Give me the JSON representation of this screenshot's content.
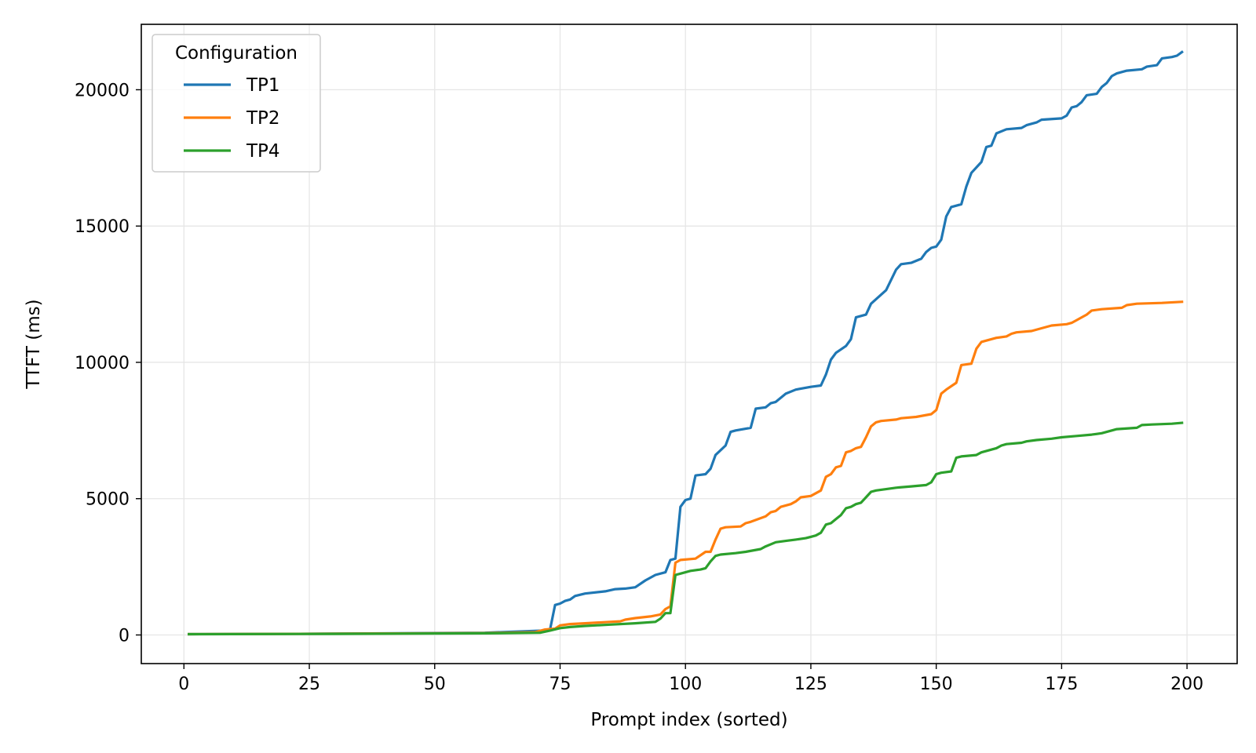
{
  "chart_data": {
    "type": "line",
    "title": "",
    "xlabel": "Prompt index (sorted)",
    "ylabel": "TTFT (ms)",
    "xlim": [
      -8.5,
      210
    ],
    "ylim": [
      -1050,
      22400
    ],
    "xticks": [
      0,
      25,
      50,
      75,
      100,
      125,
      150,
      175,
      200
    ],
    "yticks": [
      0,
      5000,
      10000,
      15000,
      20000
    ],
    "grid": true,
    "legend": {
      "title": "Configuration",
      "position": "top-left"
    },
    "series": [
      {
        "name": "TP1",
        "color": "#1f77b4",
        "points": [
          [
            1,
            30
          ],
          [
            30,
            45
          ],
          [
            60,
            80
          ],
          [
            72,
            160
          ],
          [
            73,
            200
          ],
          [
            74,
            1100
          ],
          [
            75,
            1150
          ],
          [
            76,
            1250
          ],
          [
            77,
            1300
          ],
          [
            78,
            1430
          ],
          [
            80,
            1520
          ],
          [
            84,
            1600
          ],
          [
            86,
            1680
          ],
          [
            88,
            1700
          ],
          [
            90,
            1750
          ],
          [
            92,
            2000
          ],
          [
            94,
            2200
          ],
          [
            96,
            2300
          ],
          [
            97,
            2750
          ],
          [
            98,
            2800
          ],
          [
            99,
            4700
          ],
          [
            100,
            4950
          ],
          [
            101,
            5000
          ],
          [
            102,
            5850
          ],
          [
            104,
            5900
          ],
          [
            105,
            6100
          ],
          [
            106,
            6600
          ],
          [
            108,
            6950
          ],
          [
            109,
            7450
          ],
          [
            110,
            7500
          ],
          [
            113,
            7600
          ],
          [
            114,
            8300
          ],
          [
            116,
            8350
          ],
          [
            117,
            8500
          ],
          [
            118,
            8550
          ],
          [
            120,
            8850
          ],
          [
            122,
            9000
          ],
          [
            125,
            9100
          ],
          [
            127,
            9150
          ],
          [
            128,
            9550
          ],
          [
            129,
            10100
          ],
          [
            130,
            10350
          ],
          [
            132,
            10600
          ],
          [
            133,
            10850
          ],
          [
            134,
            11650
          ],
          [
            136,
            11750
          ],
          [
            137,
            12150
          ],
          [
            140,
            12650
          ],
          [
            142,
            13400
          ],
          [
            143,
            13600
          ],
          [
            145,
            13650
          ],
          [
            147,
            13800
          ],
          [
            148,
            14050
          ],
          [
            149,
            14200
          ],
          [
            150,
            14250
          ],
          [
            151,
            14500
          ],
          [
            152,
            15350
          ],
          [
            153,
            15700
          ],
          [
            155,
            15800
          ],
          [
            156,
            16450
          ],
          [
            157,
            16950
          ],
          [
            159,
            17350
          ],
          [
            160,
            17900
          ],
          [
            161,
            17950
          ],
          [
            162,
            18400
          ],
          [
            164,
            18550
          ],
          [
            167,
            18600
          ],
          [
            168,
            18700
          ],
          [
            170,
            18800
          ],
          [
            171,
            18900
          ],
          [
            175,
            18950
          ],
          [
            176,
            19050
          ],
          [
            177,
            19350
          ],
          [
            178,
            19400
          ],
          [
            179,
            19550
          ],
          [
            180,
            19800
          ],
          [
            182,
            19850
          ],
          [
            183,
            20100
          ],
          [
            184,
            20250
          ],
          [
            185,
            20500
          ],
          [
            186,
            20600
          ],
          [
            188,
            20700
          ],
          [
            191,
            20750
          ],
          [
            192,
            20850
          ],
          [
            194,
            20900
          ],
          [
            195,
            21150
          ],
          [
            197,
            21200
          ],
          [
            198,
            21250
          ],
          [
            199,
            21380
          ]
        ]
      },
      {
        "name": "TP2",
        "color": "#ff7f0e",
        "points": [
          [
            1,
            30
          ],
          [
            30,
            45
          ],
          [
            60,
            70
          ],
          [
            70,
            100
          ],
          [
            72,
            200
          ],
          [
            74,
            230
          ],
          [
            75,
            350
          ],
          [
            77,
            400
          ],
          [
            80,
            430
          ],
          [
            85,
            480
          ],
          [
            87,
            500
          ],
          [
            88,
            560
          ],
          [
            90,
            620
          ],
          [
            93,
            680
          ],
          [
            95,
            750
          ],
          [
            96,
            950
          ],
          [
            97,
            1050
          ],
          [
            98,
            2650
          ],
          [
            99,
            2750
          ],
          [
            102,
            2800
          ],
          [
            104,
            3050
          ],
          [
            105,
            3050
          ],
          [
            106,
            3500
          ],
          [
            107,
            3900
          ],
          [
            108,
            3950
          ],
          [
            111,
            3980
          ],
          [
            112,
            4100
          ],
          [
            113,
            4150
          ],
          [
            116,
            4350
          ],
          [
            117,
            4500
          ],
          [
            118,
            4550
          ],
          [
            119,
            4700
          ],
          [
            121,
            4800
          ],
          [
            122,
            4900
          ],
          [
            123,
            5050
          ],
          [
            125,
            5100
          ],
          [
            126,
            5200
          ],
          [
            127,
            5300
          ],
          [
            128,
            5800
          ],
          [
            129,
            5900
          ],
          [
            130,
            6150
          ],
          [
            131,
            6200
          ],
          [
            132,
            6700
          ],
          [
            133,
            6750
          ],
          [
            134,
            6850
          ],
          [
            135,
            6900
          ],
          [
            136,
            7250
          ],
          [
            137,
            7650
          ],
          [
            138,
            7800
          ],
          [
            139,
            7850
          ],
          [
            142,
            7900
          ],
          [
            143,
            7950
          ],
          [
            146,
            8000
          ],
          [
            149,
            8100
          ],
          [
            150,
            8250
          ],
          [
            151,
            8850
          ],
          [
            152,
            9000
          ],
          [
            154,
            9250
          ],
          [
            155,
            9900
          ],
          [
            157,
            9950
          ],
          [
            158,
            10500
          ],
          [
            159,
            10750
          ],
          [
            160,
            10800
          ],
          [
            162,
            10900
          ],
          [
            164,
            10950
          ],
          [
            165,
            11050
          ],
          [
            166,
            11100
          ],
          [
            169,
            11150
          ],
          [
            171,
            11250
          ],
          [
            173,
            11350
          ],
          [
            176,
            11400
          ],
          [
            177,
            11450
          ],
          [
            178,
            11550
          ],
          [
            179,
            11650
          ],
          [
            180,
            11750
          ],
          [
            181,
            11900
          ],
          [
            183,
            11950
          ],
          [
            187,
            12000
          ],
          [
            188,
            12100
          ],
          [
            190,
            12150
          ],
          [
            195,
            12180
          ],
          [
            199,
            12220
          ]
        ]
      },
      {
        "name": "TP4",
        "color": "#2ca02c",
        "points": [
          [
            1,
            30
          ],
          [
            30,
            40
          ],
          [
            60,
            60
          ],
          [
            71,
            80
          ],
          [
            73,
            160
          ],
          [
            75,
            250
          ],
          [
            77,
            290
          ],
          [
            80,
            330
          ],
          [
            85,
            380
          ],
          [
            90,
            430
          ],
          [
            94,
            480
          ],
          [
            95,
            600
          ],
          [
            96,
            800
          ],
          [
            97,
            800
          ],
          [
            98,
            2200
          ],
          [
            99,
            2250
          ],
          [
            101,
            2350
          ],
          [
            103,
            2400
          ],
          [
            104,
            2450
          ],
          [
            105,
            2700
          ],
          [
            106,
            2900
          ],
          [
            107,
            2950
          ],
          [
            110,
            3000
          ],
          [
            112,
            3050
          ],
          [
            115,
            3150
          ],
          [
            116,
            3250
          ],
          [
            118,
            3400
          ],
          [
            120,
            3450
          ],
          [
            122,
            3500
          ],
          [
            124,
            3550
          ],
          [
            125,
            3600
          ],
          [
            126,
            3650
          ],
          [
            127,
            3750
          ],
          [
            128,
            4050
          ],
          [
            129,
            4100
          ],
          [
            130,
            4250
          ],
          [
            131,
            4400
          ],
          [
            132,
            4650
          ],
          [
            133,
            4700
          ],
          [
            134,
            4800
          ],
          [
            135,
            4850
          ],
          [
            136,
            5050
          ],
          [
            137,
            5250
          ],
          [
            138,
            5300
          ],
          [
            140,
            5350
          ],
          [
            142,
            5400
          ],
          [
            145,
            5450
          ],
          [
            148,
            5500
          ],
          [
            149,
            5600
          ],
          [
            150,
            5900
          ],
          [
            151,
            5950
          ],
          [
            153,
            6000
          ],
          [
            154,
            6500
          ],
          [
            155,
            6550
          ],
          [
            158,
            6600
          ],
          [
            159,
            6700
          ],
          [
            161,
            6800
          ],
          [
            162,
            6850
          ],
          [
            163,
            6950
          ],
          [
            164,
            7000
          ],
          [
            167,
            7050
          ],
          [
            168,
            7100
          ],
          [
            170,
            7150
          ],
          [
            173,
            7200
          ],
          [
            175,
            7250
          ],
          [
            178,
            7300
          ],
          [
            181,
            7350
          ],
          [
            183,
            7400
          ],
          [
            184,
            7450
          ],
          [
            185,
            7500
          ],
          [
            186,
            7550
          ],
          [
            190,
            7600
          ],
          [
            191,
            7700
          ],
          [
            193,
            7720
          ],
          [
            197,
            7750
          ],
          [
            199,
            7780
          ]
        ]
      }
    ]
  }
}
